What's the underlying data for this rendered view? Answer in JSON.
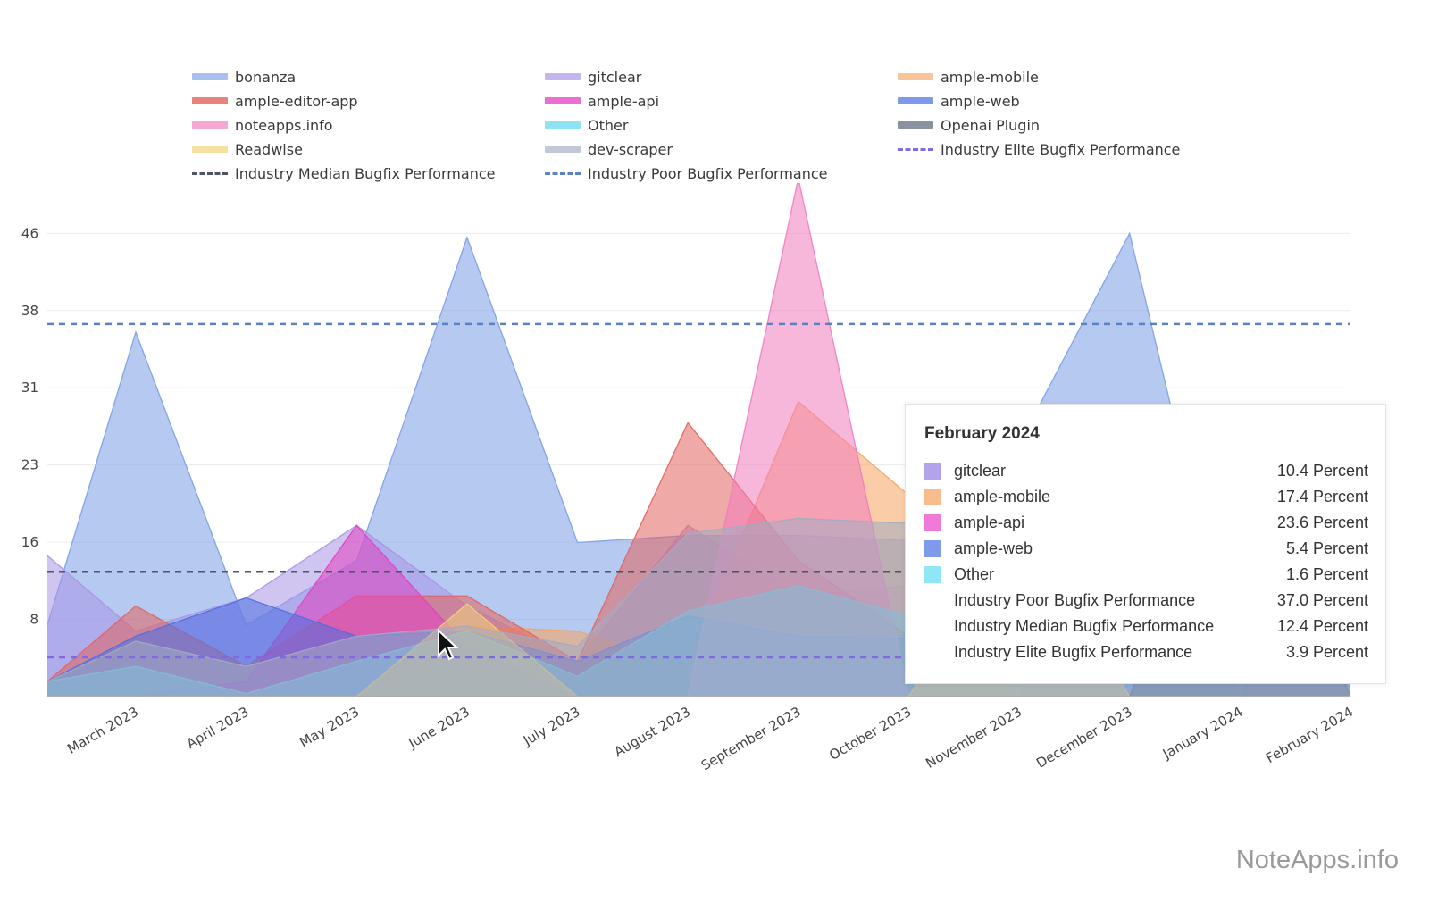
{
  "chart_data": {
    "type": "area",
    "categories": [
      "March 2023",
      "April 2023",
      "May 2023",
      "June 2023",
      "July 2023",
      "August 2023",
      "September 2023",
      "October 2023",
      "November 2023",
      "December 2023",
      "January 2024",
      "February 2024"
    ],
    "y_tick_labels": [
      "8",
      "16",
      "23",
      "31",
      "38",
      "46"
    ],
    "ylim": [
      0,
      51
    ],
    "grid": true,
    "legend_position": "top",
    "series": [
      {
        "name": "bonanza",
        "color": "#7a9de6",
        "left_edge_value": 7.1,
        "values": [
          36.2,
          7.1,
          13.5,
          45.6,
          15.3,
          16.0,
          16.0,
          15.5,
          25.1,
          46.0,
          0,
          null
        ]
      },
      {
        "name": "gitclear",
        "color": "#a994e6",
        "left_edge_value": 14,
        "values": [
          6.5,
          9.8,
          17,
          9,
          3.5,
          17,
          10,
          11,
          4,
          3,
          6,
          10.4
        ]
      },
      {
        "name": "ample-mobile",
        "color": "#f5a25e",
        "left_edge_value": 0,
        "values": [
          0,
          0,
          0,
          7,
          6.5,
          3,
          29.3,
          20,
          14,
          0,
          0,
          17.4
        ]
      },
      {
        "name": "ample-editor-app",
        "color": "#e2635c",
        "left_edge_value": 1.5,
        "values": [
          9,
          3,
          10,
          10,
          3.5,
          27.2,
          13.5,
          6,
          0,
          0,
          0,
          0
        ]
      },
      {
        "name": "ample-api",
        "color": "#e23fbf",
        "left_edge_value": 0,
        "values": [
          0,
          1.5,
          17,
          5,
          0,
          0,
          0,
          0,
          0,
          24,
          0,
          23.6
        ]
      },
      {
        "name": "ample-web",
        "color": "#4a6fe0",
        "left_edge_value": 1.5,
        "values": [
          6,
          9.8,
          6,
          6.5,
          3.5,
          8,
          6,
          5.8,
          5,
          5,
          5,
          5.4
        ]
      },
      {
        "name": "noteapps.info",
        "color": "#f07cbd",
        "left_edge_value": 0,
        "values": [
          0,
          0,
          0,
          0,
          0,
          0,
          51.5,
          0,
          0,
          0,
          0,
          0
        ]
      },
      {
        "name": "Other",
        "color": "#5fd3f0",
        "left_edge_value": 1.5,
        "values": [
          3,
          0.3,
          3.5,
          6.5,
          2,
          8.5,
          11,
          8,
          4,
          2,
          2,
          1.6
        ]
      },
      {
        "name": "Openai Plugin",
        "color": "#5c6678",
        "left_edge_value": 0,
        "values": [
          0,
          0,
          0,
          0,
          0,
          0,
          0,
          0,
          0,
          0,
          27.5,
          0
        ]
      },
      {
        "name": "Readwise",
        "color": "#f0d27a",
        "left_edge_value": 0,
        "values": [
          0,
          0,
          0,
          9.2,
          0,
          0,
          0,
          0,
          18,
          0,
          0,
          0
        ]
      },
      {
        "name": "dev-scraper",
        "color": "#a3abc2",
        "left_edge_value": 1.5,
        "values": [
          5.5,
          3,
          6,
          7,
          5,
          16.2,
          17.7,
          17.2,
          5,
          3,
          3,
          2
        ]
      }
    ],
    "reference_lines": [
      {
        "name": "Industry Elite Bugfix Performance",
        "value": 3.9,
        "color": "#7e6be0"
      },
      {
        "name": "Industry Median Bugfix Performance",
        "value": 12.4,
        "color": "#4c5466"
      },
      {
        "name": "Industry Poor Bugfix Performance",
        "value": 37.0,
        "color": "#5a82c2"
      }
    ]
  },
  "legend": [
    {
      "label": "bonanza",
      "color": "#a9c0ee",
      "style": "solid"
    },
    {
      "label": "gitclear",
      "color": "#c3b5ee",
      "style": "solid"
    },
    {
      "label": "ample-mobile",
      "color": "#f8c49a",
      "style": "solid"
    },
    {
      "label": "ample-editor-app",
      "color": "#e9827c",
      "style": "solid"
    },
    {
      "label": "ample-api",
      "color": "#ea6fd0",
      "style": "solid"
    },
    {
      "label": "ample-web",
      "color": "#7f99ea",
      "style": "solid"
    },
    {
      "label": "noteapps.info",
      "color": "#f3a7d2",
      "style": "solid"
    },
    {
      "label": "Other",
      "color": "#8ee3f5",
      "style": "solid"
    },
    {
      "label": "Openai Plugin",
      "color": "#8a91a0",
      "style": "solid"
    },
    {
      "label": "Readwise",
      "color": "#f5e2a2",
      "style": "solid"
    },
    {
      "label": "dev-scraper",
      "color": "#c3c8d6",
      "style": "solid"
    },
    {
      "label": "Industry Elite Bugfix Performance",
      "color": "#7e6be0",
      "style": "dash"
    },
    {
      "label": "Industry Median Bugfix Performance",
      "color": "#4c5466",
      "style": "dash"
    },
    {
      "label": "Industry Poor Bugfix Performance",
      "color": "#5a82c2",
      "style": "dash"
    }
  ],
  "tooltip": {
    "title": "February 2024",
    "rows": [
      {
        "label": "gitclear",
        "value": "10.4 Percent",
        "color": "#b3a3ea"
      },
      {
        "label": "ample-mobile",
        "value": "17.4 Percent",
        "color": "#f8bd8a"
      },
      {
        "label": "ample-api",
        "value": "23.6 Percent",
        "color": "#f07ad6"
      },
      {
        "label": "ample-web",
        "value": "5.4 Percent",
        "color": "#7f9aea"
      },
      {
        "label": "Other",
        "value": "1.6 Percent",
        "color": "#8fe6f7"
      },
      {
        "label": "Industry Poor Bugfix Performance",
        "value": "37.0 Percent",
        "color": ""
      },
      {
        "label": "Industry Median Bugfix Performance",
        "value": "12.4 Percent",
        "color": ""
      },
      {
        "label": "Industry Elite Bugfix Performance",
        "value": "3.9 Percent",
        "color": ""
      }
    ]
  },
  "watermark": "NoteApps.info"
}
